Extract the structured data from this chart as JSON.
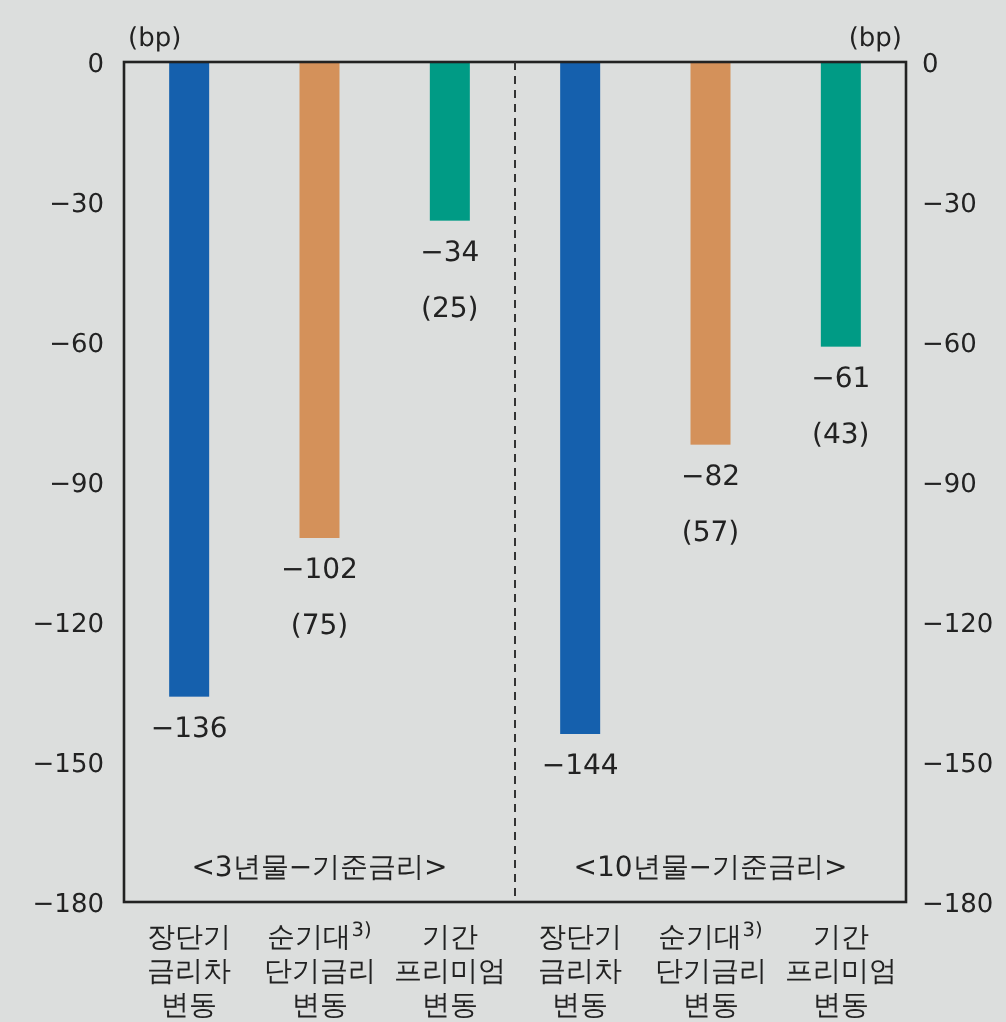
{
  "chart_data": {
    "type": "bar",
    "categories": [
      "장단기\n금리차\n변동",
      "순기대$^{3)}$\n단기금리\n변동",
      "기간\n프리미엄\n변동",
      "장단기\n금리차\n변동",
      "순기대$^{3)}$\n단기금리\n변동",
      "기간\n프리미엄\n변동"
    ],
    "values": [
      -136,
      -102,
      -34,
      -144,
      -82,
      -61
    ],
    "colors": [
      "#1560ad",
      "#d4915a",
      "#009b85",
      "#1560ad",
      "#d4915a",
      "#009b85"
    ],
    "value_labels": [
      "−136",
      "−102",
      "−34",
      "−144",
      "−82",
      "−61"
    ],
    "ylabel": "(bp)",
    "y2label": "(bp)",
    "ylim": [
      -180,
      0
    ],
    "yticks": [
      0,
      {
        "value": -30,
        "label": "−30"
      },
      {
        "value": -60,
        "label": "−60"
      },
      {
        "value": -90,
        "label": "−90"
      },
      {
        "value": -120,
        "label": "−120"
      },
      {
        "value": -150,
        "label": "−150"
      },
      {
        "value": -180,
        "label": "−180"
      }
    ],
    "y2lim": [
      -180,
      0
    ],
    "y2ticks": [
      0,
      {
        "value": -30,
        "label": "−30"
      },
      {
        "value": -60,
        "label": "−60"
      },
      {
        "value": -90,
        "label": "−90"
      },
      {
        "value": -120,
        "label": "−120"
      },
      {
        "value": -150,
        "label": "−150"
      },
      {
        "value": -180,
        "label": "−180"
      }
    ],
    "annotations": [
      {
        "text": "(75)",
        "y": -102
      },
      {
        "text": "(25)",
        "y": -34
      },
      {
        "text": "(57)",
        "y": -82
      },
      {
        "text": "(43)",
        "y": -61
      },
      "<3년물−기준금리>",
      "<10년물−기준금리>"
    ],
    "grid": false
  }
}
